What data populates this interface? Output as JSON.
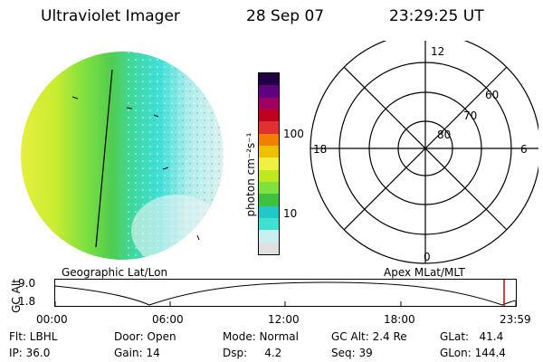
{
  "header": {
    "instrument": "Ultraviolet Imager",
    "date": "28 Sep 07",
    "time": "23:29:25 UT"
  },
  "colorbar": {
    "unit_label": "photon cm⁻²s⁻¹",
    "ticks": [
      "100",
      "10"
    ],
    "colors": [
      "#e0e0e0",
      "#c8f0f0",
      "#40e0d0",
      "#20c8c8",
      "#40c040",
      "#80e040",
      "#c0e820",
      "#f0f040",
      "#f0c000",
      "#f08000",
      "#e03030",
      "#c00020",
      "#a00060",
      "#600080",
      "#200040"
    ]
  },
  "labels": {
    "geographic": "Geographic Lat/Lon",
    "apex": "Apex MLat/MLT"
  },
  "polar": {
    "mlt_labels": {
      "top": "12",
      "left": "18",
      "right": "6",
      "bottom": "0"
    },
    "lat_labels": [
      "60",
      "70",
      "80"
    ]
  },
  "altitude_plot": {
    "ylabel": "GC Alt",
    "yticks": [
      "9.0",
      "1.8"
    ],
    "xticks": [
      "00:00",
      "06:00",
      "12:00",
      "18:00",
      "23:59"
    ],
    "marker_color": "#cc0000"
  },
  "info": {
    "flt": "Flt: LBHL",
    "ip": "IP: 36.0",
    "door": "Door: Open",
    "gain": "Gain: 14",
    "mode": "Mode: Normal",
    "dsp": "Dsp:     4.2",
    "gcalt": "GC Alt: 2.4 Re",
    "seq": "Seq: 39",
    "glat": "GLat:   41.4",
    "glon": "GLon: 144.4"
  }
}
